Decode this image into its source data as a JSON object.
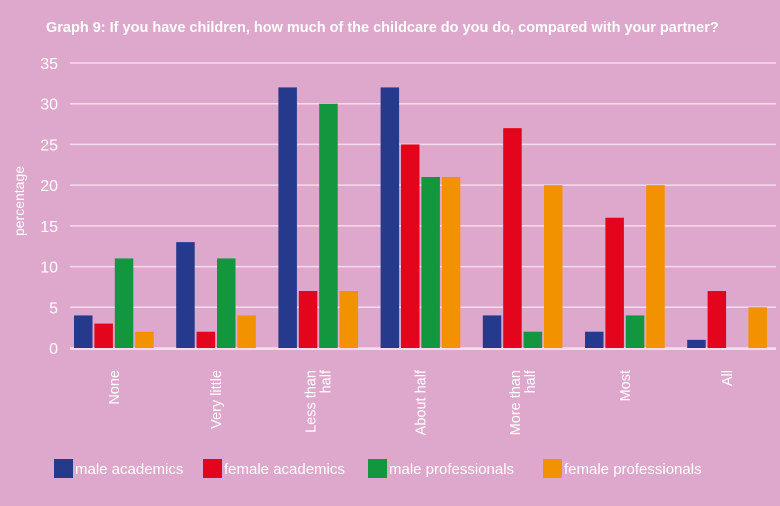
{
  "chart_data": {
    "type": "bar",
    "title": "Graph 9: If you have children, how much of the childcare do you do, compared with your partner?",
    "xlabel": "",
    "ylabel": "percentage",
    "ylim": [
      0,
      35
    ],
    "yticks": [
      0,
      5,
      10,
      15,
      20,
      25,
      30,
      35
    ],
    "grid": true,
    "legend_position": "bottom",
    "categories": [
      "None",
      "Very little",
      "Less than half",
      "About half",
      "More than half",
      "Most",
      "All"
    ],
    "category_lines": [
      [
        "None"
      ],
      [
        "Very little"
      ],
      [
        "Less than",
        "half"
      ],
      [
        "About half"
      ],
      [
        "More than",
        "half"
      ],
      [
        "Most"
      ],
      [
        "All"
      ]
    ],
    "series": [
      {
        "name": "male academics",
        "color": "#253a8c",
        "values": [
          4,
          13,
          32,
          32,
          4,
          2,
          1
        ]
      },
      {
        "name": "female academics",
        "color": "#e3051b",
        "values": [
          3,
          2,
          7,
          25,
          27,
          16,
          7
        ]
      },
      {
        "name": "male professionals",
        "color": "#12963e",
        "values": [
          11,
          11,
          30,
          21,
          2,
          4,
          0
        ]
      },
      {
        "name": "female professionals",
        "color": "#f39200",
        "values": [
          2,
          4,
          7,
          21,
          20,
          20,
          5
        ]
      }
    ]
  }
}
